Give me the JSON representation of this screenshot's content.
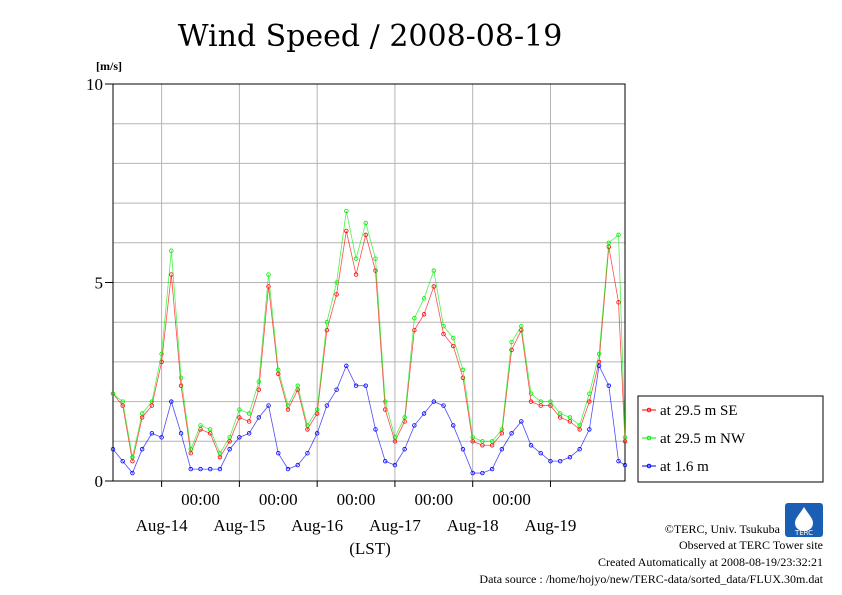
{
  "chart_data": {
    "type": "line",
    "title": "Wind Speed / 2008-08-19",
    "ylabel": "[m/s]",
    "xlabel": "(LST)",
    "ylim": [
      0,
      10
    ],
    "yticks": [
      "0",
      "5",
      "10"
    ],
    "xlim": [
      "2008-08-13T09:00",
      "2008-08-19T23:00"
    ],
    "xtick_top": [
      "00:00",
      "00:00",
      "00:00",
      "00:00",
      "00:00"
    ],
    "xtick_bottom": [
      "Aug-14",
      "Aug-15",
      "Aug-16",
      "Aug-17",
      "Aug-18",
      "Aug-19"
    ],
    "grid": true,
    "legend": "right",
    "x": [
      "2008-08-13T09:00",
      "2008-08-13T12:00",
      "2008-08-13T15:00",
      "2008-08-13T18:00",
      "2008-08-13T21:00",
      "2008-08-14T00:00",
      "2008-08-14T03:00",
      "2008-08-14T06:00",
      "2008-08-14T09:00",
      "2008-08-14T12:00",
      "2008-08-14T15:00",
      "2008-08-14T18:00",
      "2008-08-14T21:00",
      "2008-08-15T00:00",
      "2008-08-15T03:00",
      "2008-08-15T06:00",
      "2008-08-15T09:00",
      "2008-08-15T12:00",
      "2008-08-15T15:00",
      "2008-08-15T18:00",
      "2008-08-15T21:00",
      "2008-08-16T00:00",
      "2008-08-16T03:00",
      "2008-08-16T06:00",
      "2008-08-16T09:00",
      "2008-08-16T12:00",
      "2008-08-16T15:00",
      "2008-08-16T18:00",
      "2008-08-16T21:00",
      "2008-08-17T00:00",
      "2008-08-17T03:00",
      "2008-08-17T06:00",
      "2008-08-17T09:00",
      "2008-08-17T12:00",
      "2008-08-17T15:00",
      "2008-08-17T18:00",
      "2008-08-17T21:00",
      "2008-08-18T00:00",
      "2008-08-18T03:00",
      "2008-08-18T06:00",
      "2008-08-18T09:00",
      "2008-08-18T12:00",
      "2008-08-18T15:00",
      "2008-08-18T18:00",
      "2008-08-18T21:00",
      "2008-08-19T00:00",
      "2008-08-19T03:00",
      "2008-08-19T06:00",
      "2008-08-19T09:00",
      "2008-08-19T12:00",
      "2008-08-19T15:00",
      "2008-08-19T18:00",
      "2008-08-19T21:00",
      "2008-08-19T23:00"
    ],
    "series": [
      {
        "name": "at 29.5 m SE",
        "color": "#ff0000",
        "values": [
          2.2,
          1.9,
          0.5,
          1.6,
          1.9,
          3.0,
          5.2,
          2.4,
          0.7,
          1.3,
          1.2,
          0.6,
          1.0,
          1.6,
          1.5,
          2.3,
          4.9,
          2.7,
          1.8,
          2.3,
          1.3,
          1.7,
          3.8,
          4.7,
          6.3,
          5.2,
          6.2,
          5.3,
          1.8,
          1.0,
          1.5,
          3.8,
          4.2,
          4.9,
          3.7,
          3.4,
          2.6,
          1.0,
          0.9,
          0.9,
          1.2,
          3.3,
          3.8,
          2.0,
          1.9,
          1.9,
          1.6,
          1.5,
          1.3,
          2.0,
          3.0,
          5.9,
          4.5,
          1.0
        ]
      },
      {
        "name": "at 29.5 m NW",
        "color": "#00ee00",
        "values": [
          2.2,
          2.0,
          0.6,
          1.7,
          2.0,
          3.2,
          5.8,
          2.6,
          0.8,
          1.4,
          1.3,
          0.7,
          1.1,
          1.8,
          1.7,
          2.5,
          5.2,
          2.8,
          1.9,
          2.4,
          1.4,
          1.8,
          4.0,
          5.0,
          6.8,
          5.6,
          6.5,
          5.6,
          2.0,
          1.1,
          1.6,
          4.1,
          4.6,
          5.3,
          3.9,
          3.6,
          2.8,
          1.1,
          1.0,
          1.0,
          1.3,
          3.5,
          3.9,
          2.2,
          2.0,
          2.0,
          1.7,
          1.6,
          1.4,
          2.2,
          3.2,
          6.0,
          6.2,
          1.1
        ]
      },
      {
        "name": "at 1.6 m",
        "color": "#0000ff",
        "values": [
          0.8,
          0.5,
          0.2,
          0.8,
          1.2,
          1.1,
          2.0,
          1.2,
          0.3,
          0.3,
          0.3,
          0.3,
          0.8,
          1.1,
          1.2,
          1.6,
          1.9,
          0.7,
          0.3,
          0.4,
          0.7,
          1.2,
          1.9,
          2.3,
          2.9,
          2.4,
          2.4,
          1.3,
          0.5,
          0.4,
          0.8,
          1.4,
          1.7,
          2.0,
          1.9,
          1.4,
          0.8,
          0.2,
          0.2,
          0.3,
          0.8,
          1.2,
          1.5,
          0.9,
          0.7,
          0.5,
          0.5,
          0.6,
          0.8,
          1.3,
          2.9,
          2.4,
          0.5,
          0.4
        ]
      }
    ]
  },
  "footer": {
    "copyright": "©TERC, Univ. Tsukuba",
    "observed": "Observed at TERC Tower site",
    "created": "Created Automatically at 2008-08-19/23:32:21",
    "source": "Data source : /home/hojyo/new/TERC-data/sorted_data/FLUX.30m.dat",
    "logo_text": "TERC"
  }
}
